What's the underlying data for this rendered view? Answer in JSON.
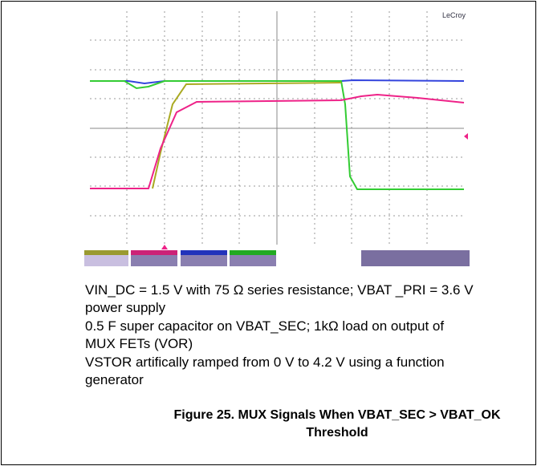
{
  "scope": {
    "brand": "LeCroy"
  },
  "caption": {
    "lines": [
      "VIN_DC = 1.5 V with 75 Ω series resistance; VBAT _PRI = 3.6 V",
      "power supply",
      "0.5 F super capacitor on VBAT_SEC; 1kΩ load on output of",
      "MUX FETs (VOR)",
      "VSTOR artifically ramped from 0 V to 4.2 V using a function",
      "generator"
    ]
  },
  "figure": {
    "title_lines": [
      "Figure 25. MUX Signals When VBAT_SEC > VBAT_OK",
      "Threshold"
    ]
  }
}
